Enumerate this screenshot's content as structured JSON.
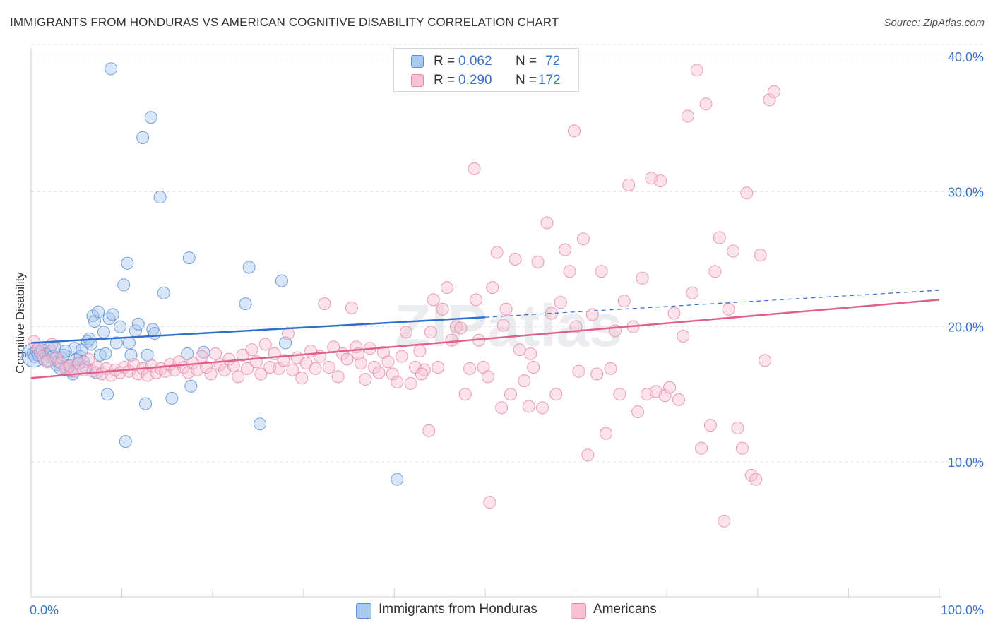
{
  "title": "IMMIGRANTS FROM HONDURAS VS AMERICAN COGNITIVE DISABILITY CORRELATION CHART",
  "source": "Source: ZipAtlas.com",
  "watermark": "ZIPatlas",
  "legend": {
    "series1": {
      "r_label": "R =",
      "r_value": "0.062",
      "n_label": "N =",
      "n_value": "72"
    },
    "series2": {
      "r_label": "R =",
      "r_value": "0.290",
      "n_label": "N =",
      "n_value": "172"
    }
  },
  "bottom_legend": {
    "series1": "Immigrants from Honduras",
    "series2": "Americans"
  },
  "colors": {
    "blue_fill": "#aac8f0",
    "blue_stroke": "#5b8fd6",
    "blue_line": "#2f6fd0",
    "pink_fill": "#f8c2d3",
    "pink_stroke": "#e68aa8",
    "pink_line": "#e0608a",
    "axis_text": "#3a74c8"
  },
  "chart_data": {
    "type": "scatter",
    "title": "IMMIGRANTS FROM HONDURAS VS AMERICAN COGNITIVE DISABILITY CORRELATION CHART",
    "xlabel": "",
    "ylabel": "Cognitive Disability",
    "xlim": [
      0,
      100
    ],
    "ylim": [
      0,
      41
    ],
    "x_tick_labels": [
      "0.0%",
      "100.0%"
    ],
    "y_ticks": [
      10,
      20,
      30,
      40
    ],
    "y_tick_labels": [
      "10.0%",
      "20.0%",
      "30.0%",
      "40.0%"
    ],
    "grid": true,
    "series": [
      {
        "name": "Immigrants from Honduras",
        "r": 0.062,
        "n": 72,
        "trend": {
          "x0": 0,
          "y0": 18.8,
          "x1": 50,
          "y1": 20.7,
          "dashed_to_x": 100,
          "dashed_to_y": 22.7
        },
        "points": [
          [
            0.2,
            18.0
          ],
          [
            0.4,
            17.8
          ],
          [
            0.6,
            18.2
          ],
          [
            0.8,
            17.9
          ],
          [
            1.0,
            18.1
          ],
          [
            1.2,
            18.3
          ],
          [
            1.4,
            17.6
          ],
          [
            1.6,
            18.0
          ],
          [
            1.8,
            17.5
          ],
          [
            2.0,
            18.4
          ],
          [
            2.2,
            18.2
          ],
          [
            2.4,
            17.8
          ],
          [
            2.6,
            18.5
          ],
          [
            2.8,
            17.2
          ],
          [
            3.0,
            17.4
          ],
          [
            3.2,
            16.9
          ],
          [
            3.4,
            17.7
          ],
          [
            3.6,
            17.9
          ],
          [
            3.8,
            18.2
          ],
          [
            4.0,
            16.9
          ],
          [
            4.2,
            17.1
          ],
          [
            4.4,
            16.7
          ],
          [
            4.6,
            16.5
          ],
          [
            4.8,
            18.4
          ],
          [
            5.0,
            17.6
          ],
          [
            5.2,
            17.3
          ],
          [
            5.4,
            17.8
          ],
          [
            5.6,
            18.3
          ],
          [
            5.8,
            17.4
          ],
          [
            6.0,
            17.0
          ],
          [
            6.2,
            18.9
          ],
          [
            6.4,
            19.1
          ],
          [
            6.6,
            18.7
          ],
          [
            6.8,
            20.8
          ],
          [
            7.0,
            20.4
          ],
          [
            7.2,
            16.6
          ],
          [
            7.4,
            21.1
          ],
          [
            7.6,
            17.9
          ],
          [
            8.0,
            19.6
          ],
          [
            8.2,
            18.0
          ],
          [
            8.6,
            20.6
          ],
          [
            9.0,
            20.9
          ],
          [
            9.4,
            18.8
          ],
          [
            9.8,
            20.0
          ],
          [
            10.2,
            23.1
          ],
          [
            10.6,
            24.7
          ],
          [
            10.8,
            18.8
          ],
          [
            11.0,
            17.9
          ],
          [
            11.5,
            19.7
          ],
          [
            11.8,
            20.2
          ],
          [
            12.6,
            14.3
          ],
          [
            12.8,
            17.9
          ],
          [
            13.4,
            19.8
          ],
          [
            13.6,
            19.5
          ],
          [
            14.6,
            22.5
          ],
          [
            14.2,
            29.6
          ],
          [
            15.5,
            14.7
          ],
          [
            17.4,
            25.1
          ],
          [
            17.6,
            15.6
          ],
          [
            17.2,
            18.0
          ],
          [
            19.0,
            18.1
          ],
          [
            23.6,
            21.7
          ],
          [
            24.0,
            24.4
          ],
          [
            25.2,
            12.8
          ],
          [
            27.6,
            23.4
          ],
          [
            28.0,
            18.8
          ],
          [
            40.3,
            8.7
          ],
          [
            8.8,
            39.1
          ],
          [
            13.2,
            35.5
          ],
          [
            12.3,
            34.0
          ],
          [
            8.4,
            15.0
          ],
          [
            10.4,
            11.5
          ]
        ]
      },
      {
        "name": "Americans",
        "r": 0.29,
        "n": 172,
        "trend": {
          "x0": 0,
          "y0": 16.2,
          "x1": 100,
          "y1": 22.0
        },
        "points": [
          [
            0.3,
            18.9
          ],
          [
            0.8,
            18.4
          ],
          [
            1.3,
            17.8
          ],
          [
            1.8,
            17.4
          ],
          [
            2.3,
            18.7
          ],
          [
            2.8,
            17.7
          ],
          [
            3.3,
            17.3
          ],
          [
            3.8,
            16.9
          ],
          [
            4.3,
            17.1
          ],
          [
            4.8,
            16.7
          ],
          [
            5.3,
            17.3
          ],
          [
            5.8,
            16.8
          ],
          [
            6.3,
            17.6
          ],
          [
            6.8,
            16.7
          ],
          [
            7.3,
            17.0
          ],
          [
            7.8,
            16.5
          ],
          [
            8.3,
            16.9
          ],
          [
            8.8,
            16.4
          ],
          [
            9.3,
            16.8
          ],
          [
            9.8,
            16.6
          ],
          [
            10.3,
            17.0
          ],
          [
            10.8,
            16.7
          ],
          [
            11.3,
            17.2
          ],
          [
            11.8,
            16.5
          ],
          [
            12.3,
            16.9
          ],
          [
            12.8,
            16.4
          ],
          [
            13.3,
            17.1
          ],
          [
            13.8,
            16.6
          ],
          [
            14.3,
            16.9
          ],
          [
            14.8,
            16.7
          ],
          [
            15.3,
            17.2
          ],
          [
            15.8,
            16.8
          ],
          [
            16.3,
            17.4
          ],
          [
            16.8,
            17.0
          ],
          [
            17.3,
            16.6
          ],
          [
            17.8,
            17.3
          ],
          [
            18.3,
            16.8
          ],
          [
            18.8,
            17.8
          ],
          [
            19.3,
            17.0
          ],
          [
            19.8,
            16.5
          ],
          [
            20.3,
            18.0
          ],
          [
            20.8,
            17.2
          ],
          [
            21.3,
            16.8
          ],
          [
            21.8,
            17.6
          ],
          [
            22.3,
            17.1
          ],
          [
            22.8,
            16.3
          ],
          [
            23.3,
            17.9
          ],
          [
            23.8,
            16.9
          ],
          [
            24.3,
            18.3
          ],
          [
            24.8,
            17.4
          ],
          [
            25.3,
            16.5
          ],
          [
            25.8,
            18.7
          ],
          [
            26.3,
            17.0
          ],
          [
            26.8,
            18.0
          ],
          [
            27.3,
            16.9
          ],
          [
            27.8,
            17.5
          ],
          [
            28.3,
            19.5
          ],
          [
            28.8,
            16.8
          ],
          [
            29.3,
            17.7
          ],
          [
            29.8,
            16.2
          ],
          [
            30.3,
            17.3
          ],
          [
            30.8,
            18.2
          ],
          [
            31.3,
            16.9
          ],
          [
            31.8,
            17.8
          ],
          [
            32.3,
            21.7
          ],
          [
            32.8,
            17.0
          ],
          [
            33.3,
            18.5
          ],
          [
            33.8,
            16.3
          ],
          [
            34.3,
            18.0
          ],
          [
            34.8,
            17.6
          ],
          [
            35.3,
            21.4
          ],
          [
            35.8,
            18.5
          ],
          [
            36.3,
            17.3
          ],
          [
            36.8,
            16.1
          ],
          [
            37.3,
            18.4
          ],
          [
            37.8,
            17.0
          ],
          [
            38.3,
            16.6
          ],
          [
            38.8,
            18.1
          ],
          [
            39.3,
            17.4
          ],
          [
            39.8,
            16.5
          ],
          [
            40.3,
            15.9
          ],
          [
            40.8,
            17.8
          ],
          [
            41.3,
            19.6
          ],
          [
            41.8,
            15.8
          ],
          [
            42.3,
            17.0
          ],
          [
            42.8,
            18.2
          ],
          [
            43.3,
            16.8
          ],
          [
            43.8,
            12.3
          ],
          [
            44.3,
            22.0
          ],
          [
            44.8,
            17.0
          ],
          [
            45.3,
            21.3
          ],
          [
            45.8,
            22.9
          ],
          [
            46.3,
            19.0
          ],
          [
            46.8,
            20.0
          ],
          [
            47.3,
            19.9
          ],
          [
            47.8,
            15.0
          ],
          [
            48.3,
            16.9
          ],
          [
            48.8,
            31.7
          ],
          [
            49.3,
            19.0
          ],
          [
            49.8,
            17.0
          ],
          [
            50.3,
            16.3
          ],
          [
            50.8,
            22.9
          ],
          [
            51.3,
            25.5
          ],
          [
            51.8,
            14.0
          ],
          [
            52.3,
            21.3
          ],
          [
            52.8,
            15.0
          ],
          [
            53.3,
            25.0
          ],
          [
            53.8,
            18.3
          ],
          [
            54.3,
            16.0
          ],
          [
            54.8,
            14.1
          ],
          [
            55.3,
            17.0
          ],
          [
            55.8,
            24.8
          ],
          [
            56.3,
            14.0
          ],
          [
            56.8,
            27.7
          ],
          [
            57.3,
            21.0
          ],
          [
            57.8,
            15.0
          ],
          [
            58.3,
            21.8
          ],
          [
            58.8,
            25.7
          ],
          [
            59.3,
            24.1
          ],
          [
            59.8,
            34.5
          ],
          [
            60.3,
            16.7
          ],
          [
            60.8,
            26.5
          ],
          [
            61.3,
            10.5
          ],
          [
            61.8,
            20.9
          ],
          [
            62.3,
            16.5
          ],
          [
            62.8,
            24.1
          ],
          [
            63.3,
            12.1
          ],
          [
            63.8,
            16.9
          ],
          [
            64.3,
            19.7
          ],
          [
            64.8,
            15.0
          ],
          [
            65.3,
            21.9
          ],
          [
            65.8,
            30.5
          ],
          [
            66.3,
            20.0
          ],
          [
            66.8,
            13.7
          ],
          [
            67.3,
            23.6
          ],
          [
            67.8,
            15.0
          ],
          [
            68.3,
            31.0
          ],
          [
            68.8,
            15.2
          ],
          [
            69.3,
            30.8
          ],
          [
            69.8,
            14.9
          ],
          [
            70.3,
            15.5
          ],
          [
            70.8,
            21.0
          ],
          [
            71.3,
            14.6
          ],
          [
            71.8,
            19.3
          ],
          [
            72.3,
            35.6
          ],
          [
            72.8,
            22.5
          ],
          [
            73.3,
            39.0
          ],
          [
            73.8,
            11.0
          ],
          [
            74.3,
            36.5
          ],
          [
            74.8,
            12.7
          ],
          [
            75.3,
            24.1
          ],
          [
            75.8,
            26.6
          ],
          [
            76.3,
            5.6
          ],
          [
            76.8,
            21.3
          ],
          [
            77.3,
            25.6
          ],
          [
            77.8,
            12.5
          ],
          [
            78.3,
            11.0
          ],
          [
            78.8,
            29.9
          ],
          [
            79.3,
            9.0
          ],
          [
            79.8,
            8.7
          ],
          [
            80.3,
            25.3
          ],
          [
            80.8,
            17.5
          ],
          [
            81.3,
            36.8
          ],
          [
            81.8,
            37.4
          ],
          [
            50.5,
            7.0
          ],
          [
            49.0,
            22.0
          ],
          [
            44.0,
            19.6
          ],
          [
            60.0,
            20.0
          ],
          [
            36.0,
            18.0
          ],
          [
            43.0,
            16.5
          ],
          [
            52.0,
            20.1
          ],
          [
            55.0,
            18.0
          ]
        ]
      }
    ]
  }
}
